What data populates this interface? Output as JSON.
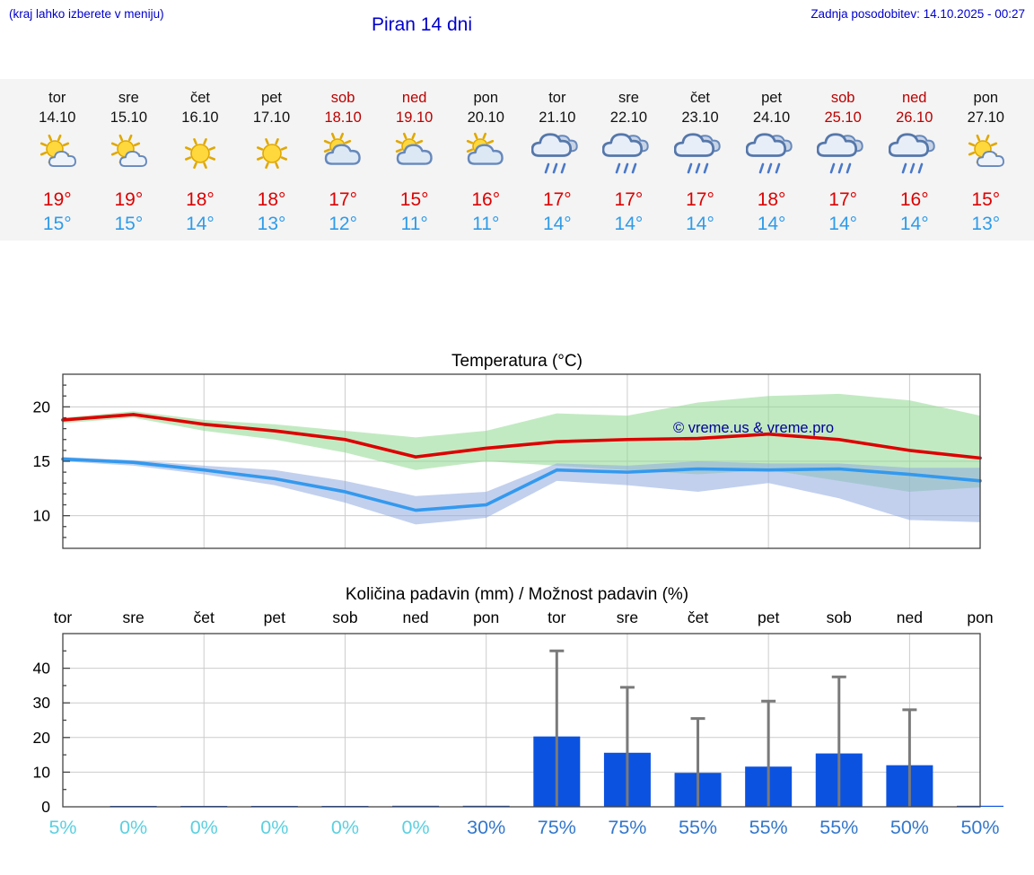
{
  "header": {
    "hint": "(kraj lahko izberete v meniju)",
    "title": "Piran 14 dni",
    "updated": "Zadnja posodobitev: 14.10.2025 - 00:27"
  },
  "colors": {
    "accent_blue": "#0000cc",
    "weekend_red": "#bb0000",
    "temp_high_line": "#dd0000",
    "temp_low_line": "#3399ee",
    "band_high": "#8fd88f",
    "band_low": "#8fa9e0",
    "bar_blue": "#0b52e0",
    "whisker_gray": "#7a7a7a",
    "prob_low": "#5bd0e0",
    "prob_high": "#3377cc",
    "watermark_blue": "#000099"
  },
  "forecast": {
    "days": [
      {
        "name": "tor",
        "date": "14.10",
        "weekend": false,
        "icon": "sun-small-cloud",
        "high": "19°",
        "low": "15°"
      },
      {
        "name": "sre",
        "date": "15.10",
        "weekend": false,
        "icon": "sun-small-cloud",
        "high": "19°",
        "low": "15°"
      },
      {
        "name": "čet",
        "date": "16.10",
        "weekend": false,
        "icon": "sun",
        "high": "18°",
        "low": "14°"
      },
      {
        "name": "pet",
        "date": "17.10",
        "weekend": false,
        "icon": "sun",
        "high": "18°",
        "low": "13°"
      },
      {
        "name": "sob",
        "date": "18.10",
        "weekend": true,
        "icon": "sun-cloud",
        "high": "17°",
        "low": "12°"
      },
      {
        "name": "ned",
        "date": "19.10",
        "weekend": true,
        "icon": "sun-cloud",
        "high": "15°",
        "low": "11°"
      },
      {
        "name": "pon",
        "date": "20.10",
        "weekend": false,
        "icon": "sun-cloud",
        "high": "16°",
        "low": "11°"
      },
      {
        "name": "tor",
        "date": "21.10",
        "weekend": false,
        "icon": "rain",
        "high": "17°",
        "low": "14°"
      },
      {
        "name": "sre",
        "date": "22.10",
        "weekend": false,
        "icon": "rain",
        "high": "17°",
        "low": "14°"
      },
      {
        "name": "čet",
        "date": "23.10",
        "weekend": false,
        "icon": "rain",
        "high": "17°",
        "low": "14°"
      },
      {
        "name": "pet",
        "date": "24.10",
        "weekend": false,
        "icon": "rain",
        "high": "18°",
        "low": "14°"
      },
      {
        "name": "sob",
        "date": "25.10",
        "weekend": true,
        "icon": "rain",
        "high": "17°",
        "low": "14°"
      },
      {
        "name": "ned",
        "date": "26.10",
        "weekend": true,
        "icon": "rain",
        "high": "16°",
        "low": "14°"
      },
      {
        "name": "pon",
        "date": "27.10",
        "weekend": false,
        "icon": "sun-small-cloud",
        "high": "15°",
        "low": "13°"
      }
    ]
  },
  "chart_data": [
    {
      "type": "line",
      "title": "Temperatura (°C)",
      "x_days": [
        "tor",
        "sre",
        "čet",
        "pet",
        "sob",
        "ned",
        "pon",
        "tor",
        "sre",
        "čet",
        "pet",
        "sob",
        "ned",
        "pon"
      ],
      "ylim": [
        7,
        23
      ],
      "yticks": [
        10,
        15,
        20
      ],
      "grid": true,
      "watermark": "© vreme.us & vreme.pro",
      "series": [
        {
          "name": "max-temperature",
          "color": "#dd0000",
          "values": [
            18.8,
            19.3,
            18.4,
            17.8,
            17.0,
            15.4,
            16.2,
            16.8,
            17.0,
            17.1,
            17.5,
            17.0,
            16.0,
            15.3
          ]
        },
        {
          "name": "min-temperature",
          "color": "#3399ee",
          "values": [
            15.2,
            14.9,
            14.2,
            13.4,
            12.2,
            10.5,
            11.0,
            14.2,
            14.0,
            14.3,
            14.2,
            14.3,
            13.8,
            13.2
          ]
        }
      ],
      "bands": [
        {
          "name": "max-range",
          "color": "#8fd88f",
          "upper": [
            19.0,
            19.6,
            18.8,
            18.4,
            17.8,
            17.2,
            17.8,
            19.4,
            19.2,
            20.4,
            21.0,
            21.2,
            20.6,
            19.2
          ],
          "lower": [
            18.5,
            19.0,
            17.8,
            17.0,
            15.8,
            14.2,
            15.0,
            14.6,
            14.2,
            13.8,
            14.2,
            13.2,
            12.2,
            12.6
          ]
        },
        {
          "name": "min-range",
          "color": "#8fa9e0",
          "upper": [
            15.4,
            15.1,
            14.6,
            14.2,
            13.2,
            11.8,
            12.2,
            14.8,
            14.6,
            15.0,
            14.8,
            14.8,
            14.4,
            14.4
          ],
          "lower": [
            15.0,
            14.6,
            13.8,
            12.8,
            11.2,
            9.2,
            9.8,
            13.2,
            12.8,
            12.2,
            13.0,
            11.6,
            9.6,
            9.4
          ]
        }
      ]
    },
    {
      "type": "bar",
      "title": "Količina padavin (mm) / Možnost padavin (%)",
      "categories": [
        "tor",
        "sre",
        "čet",
        "pet",
        "sob",
        "ned",
        "pon",
        "tor",
        "sre",
        "čet",
        "pet",
        "sob",
        "ned",
        "pon"
      ],
      "values_mm": [
        0.0,
        0.2,
        0.2,
        0.2,
        0.2,
        0.3,
        0.3,
        20.3,
        15.6,
        9.8,
        11.6,
        15.4,
        12.0,
        0.3
      ],
      "whisker_max_mm": [
        0,
        0,
        0,
        0,
        0,
        0,
        0,
        45,
        34.5,
        25.5,
        30.5,
        37.5,
        28,
        0
      ],
      "probability_pct": [
        5,
        0,
        0,
        0,
        0,
        0,
        30,
        75,
        75,
        55,
        55,
        55,
        50,
        50
      ],
      "ylim": [
        0,
        50
      ],
      "yticks": [
        0,
        10,
        20,
        30,
        40
      ],
      "grid": true
    }
  ]
}
